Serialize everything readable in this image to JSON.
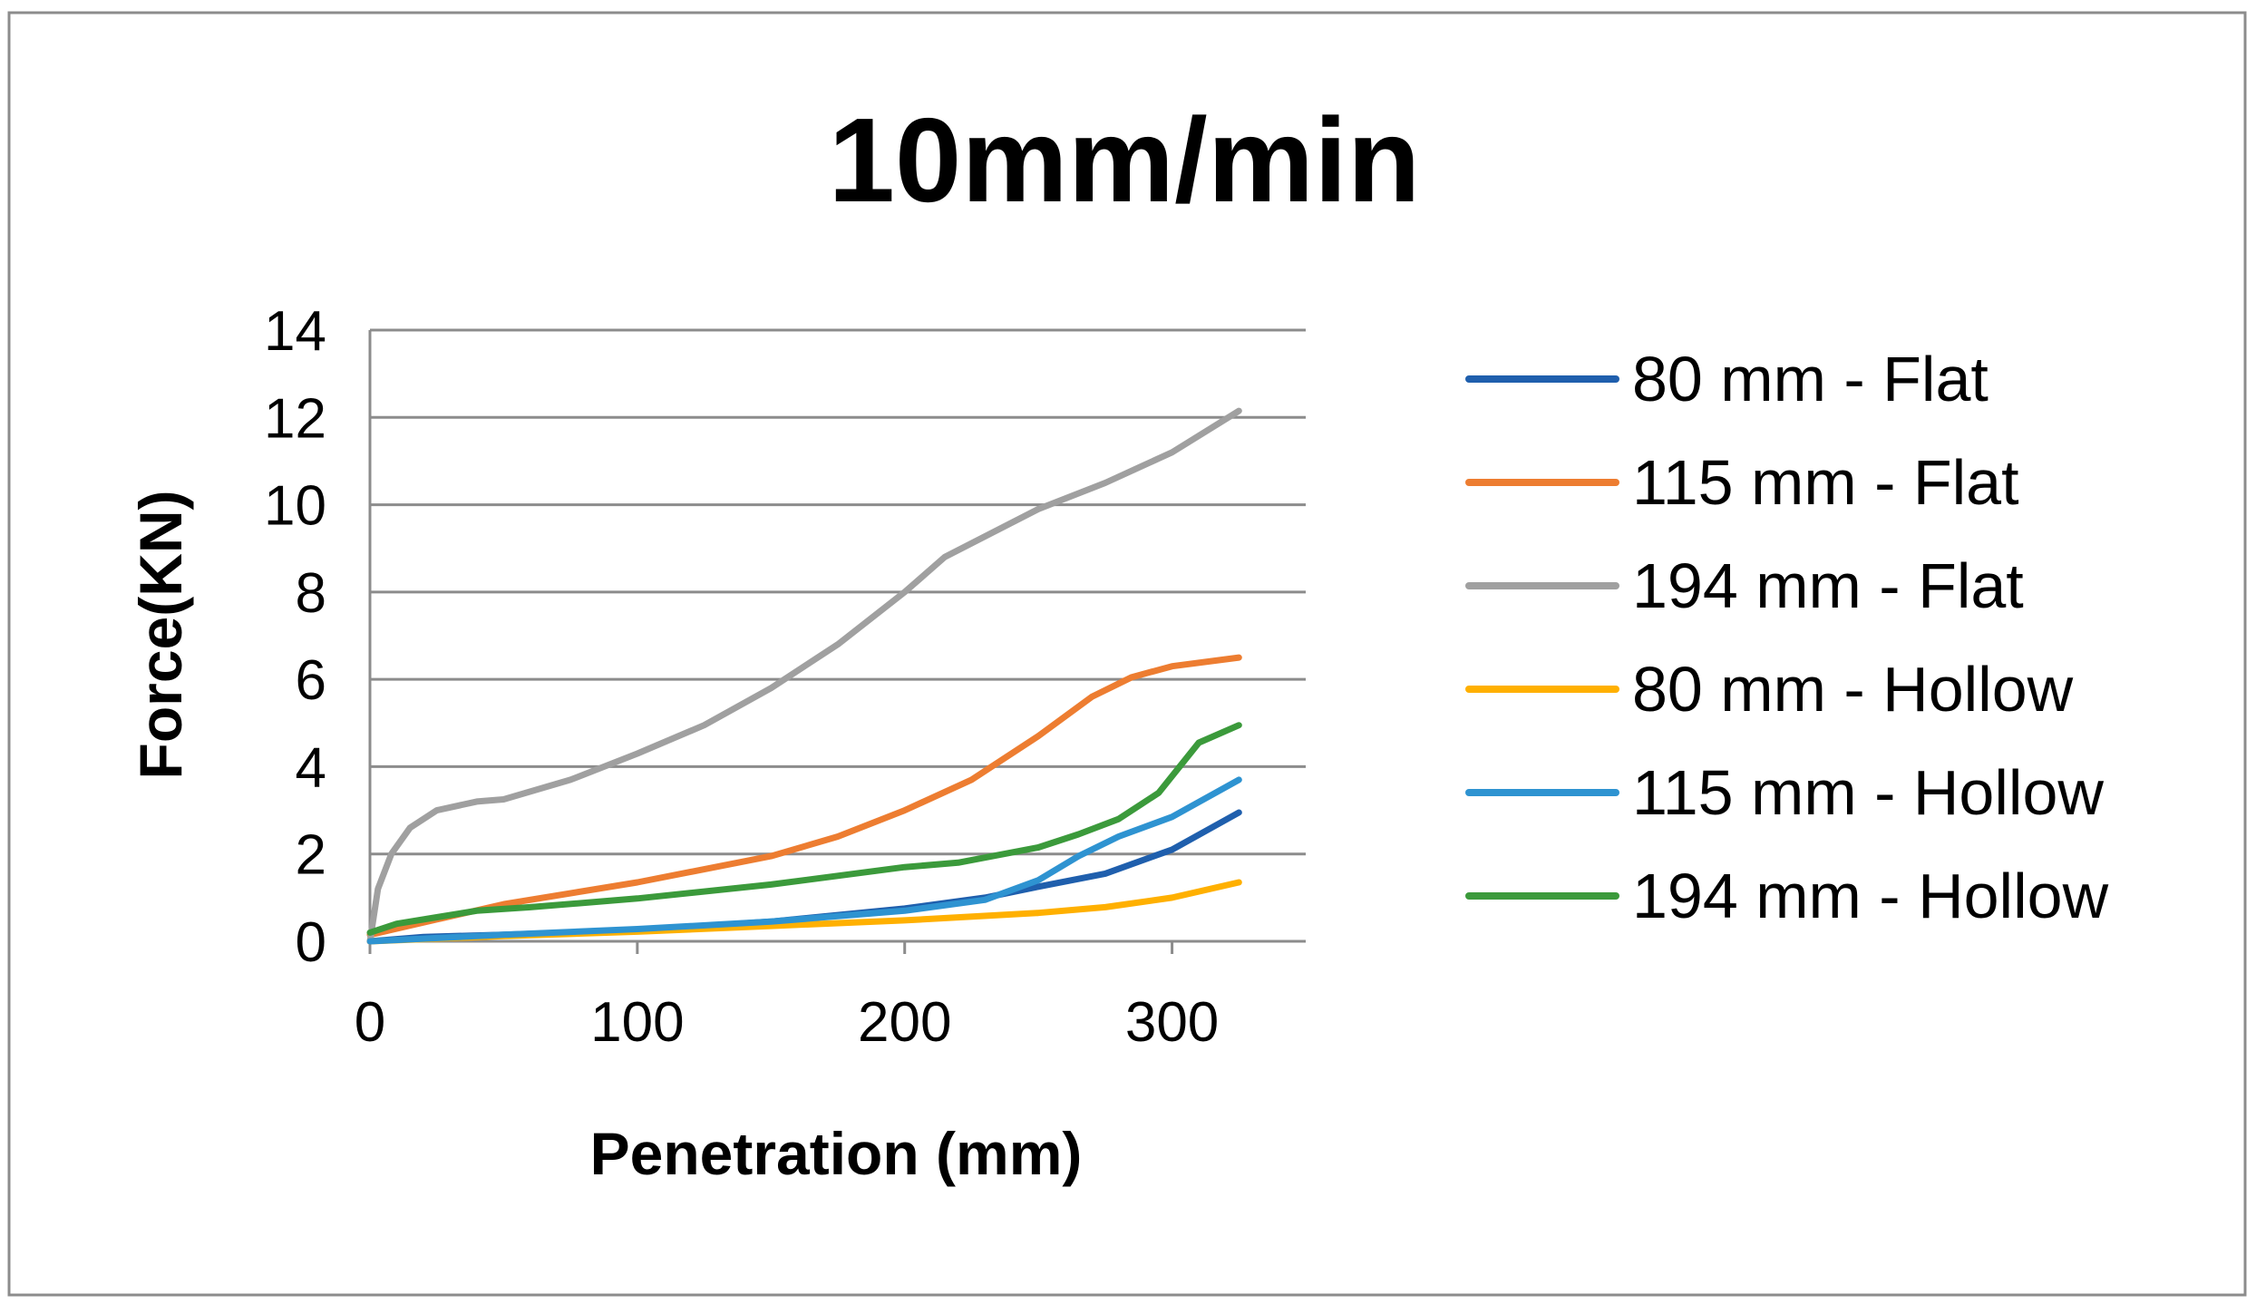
{
  "chart_data": {
    "type": "line",
    "title": "10mm/min",
    "xlabel": "Penetration (mm)",
    "ylabel": "Force(KN)",
    "xlim": [
      0,
      350
    ],
    "ylim": [
      0,
      14
    ],
    "x_ticks": [
      0,
      100,
      200,
      300
    ],
    "y_ticks": [
      0,
      2,
      4,
      6,
      8,
      10,
      12,
      14
    ],
    "x_tick_labels": [
      "0",
      "100",
      "200",
      "300"
    ],
    "y_tick_labels": [
      "0",
      "2",
      "4",
      "6",
      "8",
      "10",
      "12",
      "14"
    ],
    "grid": "horizontal",
    "legend_position": "right",
    "series": [
      {
        "name": "80 mm - Flat",
        "color": "#1F5FAD",
        "points": [
          [
            0,
            0
          ],
          [
            20,
            0.1
          ],
          [
            50,
            0.15
          ],
          [
            100,
            0.25
          ],
          [
            150,
            0.45
          ],
          [
            200,
            0.75
          ],
          [
            230,
            1.0
          ],
          [
            250,
            1.25
          ],
          [
            275,
            1.55
          ],
          [
            300,
            2.1
          ],
          [
            325,
            2.95
          ]
        ]
      },
      {
        "name": "115 mm - Flat",
        "color": "#ED7D31",
        "points": [
          [
            0,
            0.15
          ],
          [
            25,
            0.5
          ],
          [
            50,
            0.85
          ],
          [
            100,
            1.35
          ],
          [
            150,
            1.95
          ],
          [
            175,
            2.4
          ],
          [
            200,
            3.0
          ],
          [
            225,
            3.7
          ],
          [
            250,
            4.7
          ],
          [
            270,
            5.6
          ],
          [
            285,
            6.05
          ],
          [
            300,
            6.3
          ],
          [
            325,
            6.5
          ]
        ]
      },
      {
        "name": "194 mm - Flat",
        "color": "#A0A0A0",
        "points": [
          [
            0,
            0
          ],
          [
            3,
            1.2
          ],
          [
            8,
            2.0
          ],
          [
            15,
            2.6
          ],
          [
            25,
            3.0
          ],
          [
            40,
            3.2
          ],
          [
            50,
            3.25
          ],
          [
            75,
            3.7
          ],
          [
            100,
            4.3
          ],
          [
            125,
            4.95
          ],
          [
            150,
            5.8
          ],
          [
            175,
            6.8
          ],
          [
            200,
            8.0
          ],
          [
            215,
            8.8
          ],
          [
            250,
            9.9
          ],
          [
            275,
            10.5
          ],
          [
            300,
            11.2
          ],
          [
            325,
            12.15
          ]
        ]
      },
      {
        "name": "80 mm - Hollow",
        "color": "#FFB000",
        "points": [
          [
            0,
            0
          ],
          [
            50,
            0.12
          ],
          [
            100,
            0.22
          ],
          [
            150,
            0.35
          ],
          [
            200,
            0.48
          ],
          [
            250,
            0.65
          ],
          [
            275,
            0.78
          ],
          [
            300,
            1.0
          ],
          [
            325,
            1.35
          ]
        ]
      },
      {
        "name": "115 mm - Hollow",
        "color": "#2E93D1",
        "points": [
          [
            0,
            0
          ],
          [
            50,
            0.15
          ],
          [
            100,
            0.28
          ],
          [
            150,
            0.45
          ],
          [
            200,
            0.7
          ],
          [
            230,
            0.95
          ],
          [
            250,
            1.4
          ],
          [
            265,
            1.95
          ],
          [
            280,
            2.4
          ],
          [
            300,
            2.85
          ],
          [
            325,
            3.7
          ]
        ]
      },
      {
        "name": "194 mm - Hollow",
        "color": "#3B9A3B",
        "points": [
          [
            0,
            0.2
          ],
          [
            10,
            0.4
          ],
          [
            25,
            0.55
          ],
          [
            40,
            0.7
          ],
          [
            60,
            0.78
          ],
          [
            100,
            0.98
          ],
          [
            150,
            1.3
          ],
          [
            200,
            1.7
          ],
          [
            220,
            1.8
          ],
          [
            250,
            2.15
          ],
          [
            265,
            2.45
          ],
          [
            280,
            2.8
          ],
          [
            295,
            3.4
          ],
          [
            310,
            4.55
          ],
          [
            325,
            4.95
          ]
        ]
      }
    ]
  }
}
